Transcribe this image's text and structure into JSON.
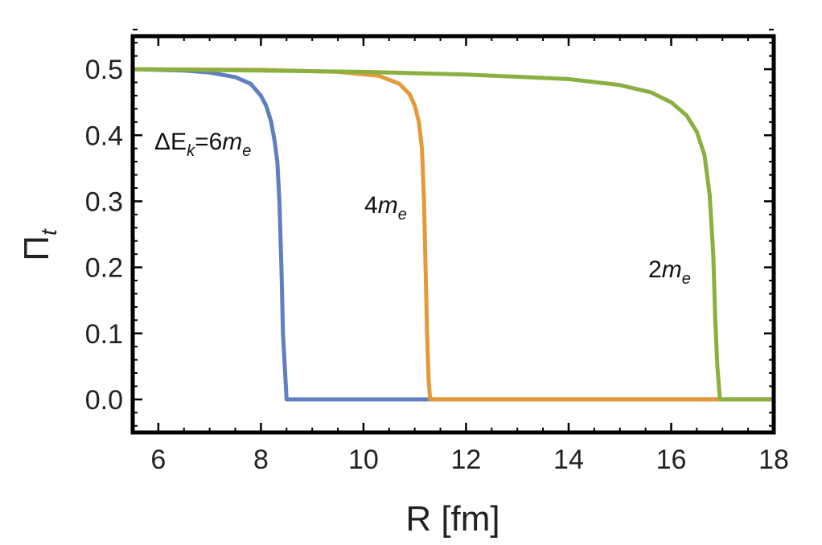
{
  "chart_data": {
    "type": "line",
    "xlabel": "R [fm]",
    "ylabel": "Π",
    "ylabel_sub": "t",
    "xlim": [
      5.5,
      18
    ],
    "ylim": [
      -0.05,
      0.55
    ],
    "xticks": [
      6,
      8,
      10,
      12,
      14,
      16,
      18
    ],
    "yticks": [
      0.0,
      0.1,
      0.2,
      0.3,
      0.4,
      0.5
    ],
    "xtick_labels": [
      "6",
      "8",
      "10",
      "12",
      "14",
      "16",
      "18"
    ],
    "ytick_labels": [
      "0.0",
      "0.1",
      "0.2",
      "0.3",
      "0.4",
      "0.5"
    ],
    "grid": false,
    "series": [
      {
        "color": "#5f7fbf",
        "label": {
          "prefix": "ΔE",
          "prefix_sub": "k",
          "mid": "=6",
          "mass": "m",
          "mass_sub": "e"
        },
        "x": [
          5.5,
          6.5,
          7.0,
          7.5,
          7.8,
          8.0,
          8.1,
          8.2,
          8.27,
          8.32,
          8.36,
          8.4,
          8.43,
          8.5,
          18.0
        ],
        "y": [
          0.5,
          0.498,
          0.495,
          0.488,
          0.478,
          0.46,
          0.445,
          0.42,
          0.39,
          0.36,
          0.3,
          0.2,
          0.1,
          0.0,
          0.0
        ]
      },
      {
        "color": "#e39a3b",
        "label": {
          "prefix": "",
          "prefix_sub": "",
          "mid": "4",
          "mass": "m",
          "mass_sub": "e"
        },
        "x": [
          5.5,
          8.0,
          9.5,
          10.3,
          10.7,
          10.9,
          11.0,
          11.08,
          11.14,
          11.18,
          11.21,
          11.24,
          11.27,
          11.3,
          18.0
        ],
        "y": [
          0.5,
          0.499,
          0.496,
          0.49,
          0.478,
          0.462,
          0.445,
          0.42,
          0.38,
          0.3,
          0.2,
          0.1,
          0.03,
          0.0,
          0.0
        ]
      },
      {
        "color": "#8ab040",
        "label": {
          "prefix": "",
          "prefix_sub": "",
          "mid": "2",
          "mass": "m",
          "mass_sub": "e"
        },
        "x": [
          5.5,
          8.0,
          10.0,
          12.0,
          14.0,
          15.0,
          15.6,
          16.0,
          16.3,
          16.5,
          16.65,
          16.75,
          16.82,
          16.86,
          16.9,
          16.95,
          18.0
        ],
        "y": [
          0.5,
          0.498,
          0.496,
          0.492,
          0.485,
          0.476,
          0.465,
          0.45,
          0.43,
          0.405,
          0.37,
          0.31,
          0.22,
          0.12,
          0.05,
          0.0,
          0.0
        ]
      }
    ]
  }
}
